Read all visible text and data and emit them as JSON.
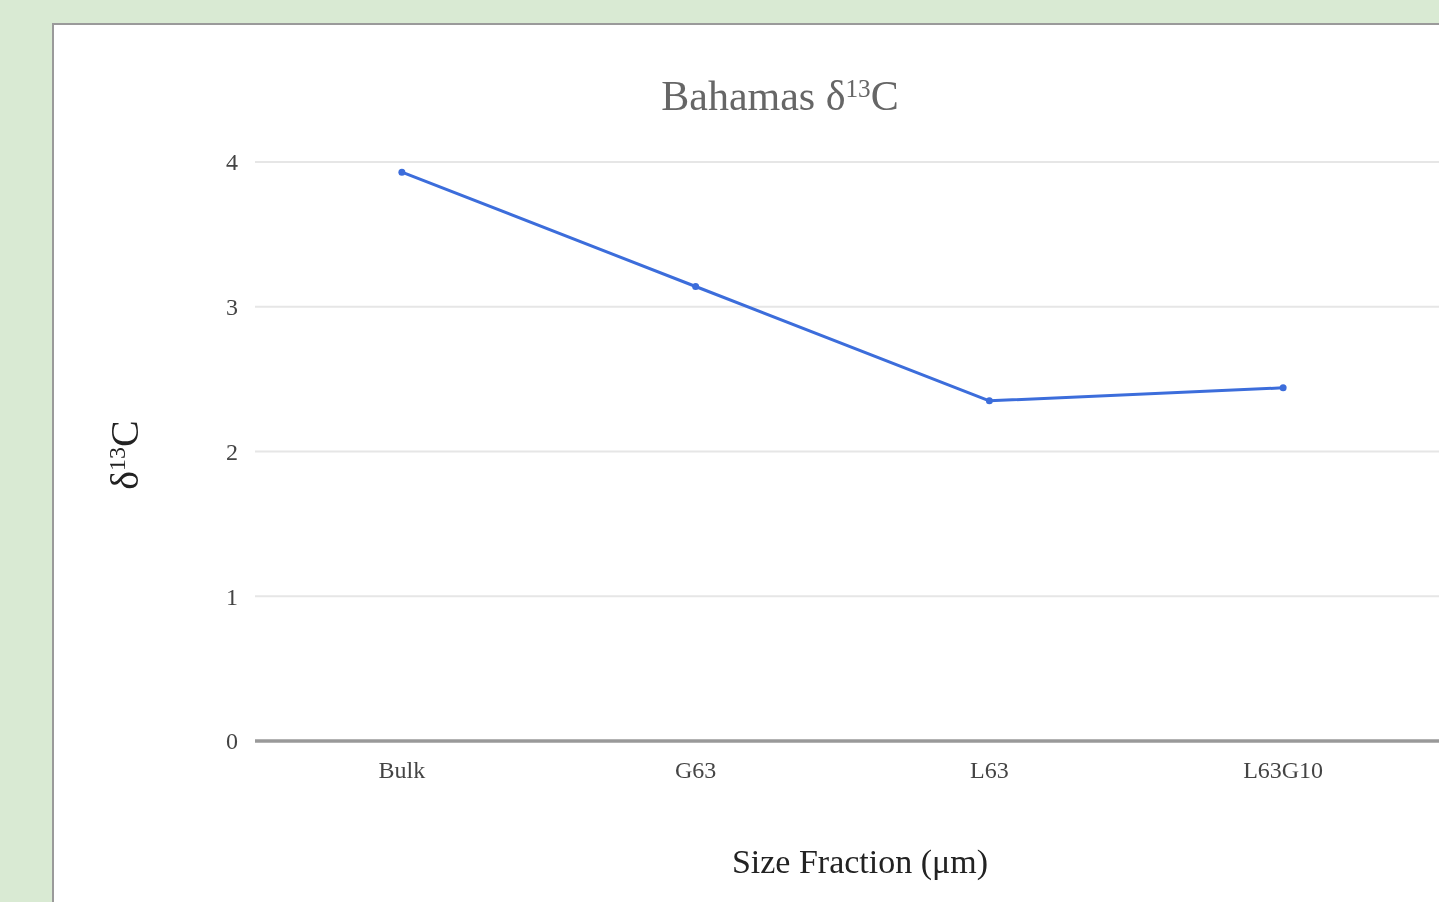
{
  "chart_data": {
    "type": "line",
    "title": "Bahamas  δ$^{13}$C",
    "xlabel": "Size Fraction (μm)",
    "ylabel": "δ$^{13}$C",
    "categories": [
      "Bulk",
      "G63",
      "L63",
      "L63G10"
    ],
    "series": [
      {
        "color": "#3c6ddb",
        "values": [
          3.93,
          3.14,
          2.35,
          2.44
        ]
      }
    ],
    "ylim": [
      0,
      4
    ],
    "yticks": [
      0,
      1,
      2,
      3,
      4
    ],
    "grid": "y",
    "marker": "circle",
    "line_style": "solid"
  }
}
